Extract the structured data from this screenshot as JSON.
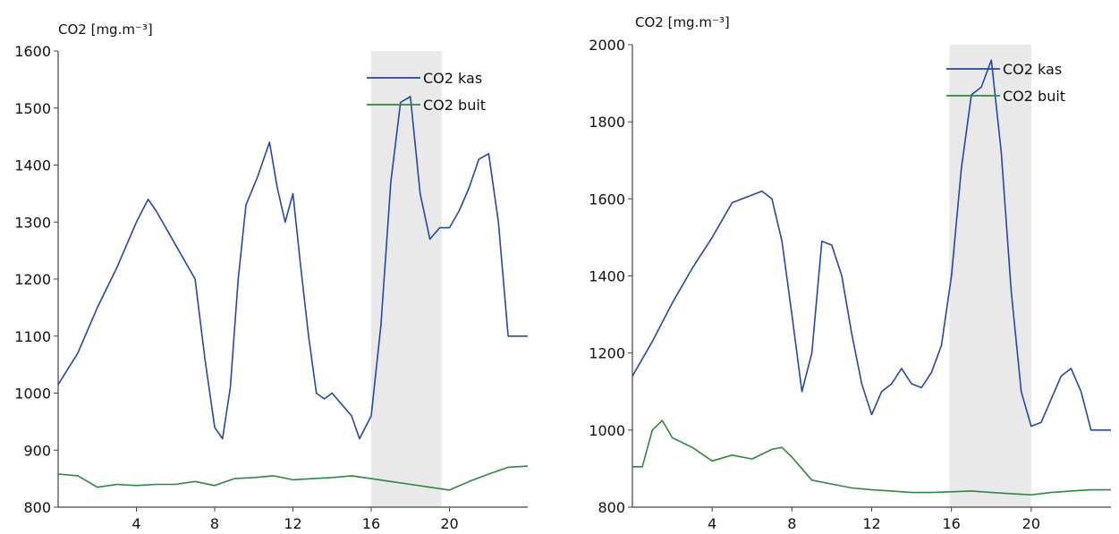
{
  "chart_data": [
    {
      "type": "line",
      "title": "",
      "xlabel": "",
      "ylabel": "CO2 [mg.m⁻³]",
      "xlim": [
        0,
        24
      ],
      "ylim": [
        800,
        1600
      ],
      "xticks": [
        4,
        8,
        12,
        16,
        20
      ],
      "xtick_labels": [
        "4",
        "8",
        "12",
        "16",
        "20"
      ],
      "yticks": [
        800,
        900,
        1000,
        1100,
        1200,
        1300,
        1400,
        1500,
        1600
      ],
      "ytick_labels": [
        "800",
        "900",
        "1000",
        "1100",
        "1200",
        "1300",
        "1400",
        "1500",
        "1600"
      ],
      "shaded_x": [
        16,
        19.6
      ],
      "shade_color": "#e9e9e9",
      "grid": false,
      "legend_position": "top-right",
      "series": [
        {
          "name": "CO2 kas",
          "color": "#2448a8",
          "x": [
            0,
            1,
            2,
            3,
            4,
            4.6,
            5,
            6,
            7,
            7.5,
            8,
            8.4,
            8.8,
            9.2,
            9.6,
            10.2,
            10.8,
            11.2,
            11.6,
            12,
            12.4,
            12.8,
            13.2,
            13.6,
            14,
            14.5,
            15,
            15.4,
            16,
            16.5,
            17,
            17.5,
            18,
            18.5,
            19,
            19.5,
            20,
            20.5,
            21,
            21.5,
            22,
            22.5,
            23,
            24
          ],
          "y": [
            1015,
            1070,
            1150,
            1220,
            1300,
            1340,
            1320,
            1260,
            1200,
            1060,
            940,
            920,
            1010,
            1200,
            1330,
            1380,
            1440,
            1360,
            1300,
            1350,
            1220,
            1100,
            1000,
            990,
            1000,
            980,
            960,
            920,
            960,
            1120,
            1370,
            1510,
            1520,
            1350,
            1270,
            1290,
            1290,
            1320,
            1360,
            1410,
            1420,
            1300,
            1100,
            1100
          ]
        },
        {
          "name": "CO2 buit",
          "color": "#2a8a3a",
          "x": [
            0,
            1,
            2,
            3,
            4,
            5,
            6,
            7,
            8,
            9,
            10,
            11,
            12,
            13,
            14,
            15,
            16,
            17,
            18,
            19,
            20,
            21,
            22,
            23,
            24
          ],
          "y": [
            858,
            855,
            835,
            840,
            838,
            840,
            840,
            845,
            838,
            850,
            852,
            855,
            848,
            850,
            852,
            855,
            850,
            845,
            840,
            835,
            830,
            845,
            858,
            870,
            872
          ]
        }
      ]
    },
    {
      "type": "line",
      "title": "",
      "xlabel": "",
      "ylabel": "CO2 [mg.m⁻³]",
      "xlim": [
        0,
        24
      ],
      "ylim": [
        800,
        2000
      ],
      "xticks": [
        4,
        8,
        12,
        16,
        20
      ],
      "xtick_labels": [
        "4",
        "8",
        "12",
        "16",
        "20"
      ],
      "yticks": [
        800,
        1000,
        1200,
        1400,
        1600,
        1800,
        2000
      ],
      "ytick_labels": [
        "800",
        "1000",
        "1200",
        "1400",
        "1600",
        "1800",
        "2000"
      ],
      "shaded_x": [
        15.9,
        20
      ],
      "shade_color": "#e9e9e9",
      "grid": false,
      "legend_position": "top-right",
      "series": [
        {
          "name": "CO2 kas",
          "color": "#2448a8",
          "x": [
            0,
            1,
            2,
            3,
            4,
            5,
            6,
            6.5,
            7,
            7.5,
            8,
            8.5,
            9,
            9.5,
            10,
            10.5,
            11,
            11.5,
            12,
            12.5,
            13,
            13.5,
            14,
            14.5,
            15,
            15.5,
            16,
            16.5,
            17,
            17.5,
            18,
            18.5,
            19,
            19.5,
            20,
            20.5,
            21,
            21.5,
            22,
            22.5,
            23,
            24
          ],
          "y": [
            1140,
            1230,
            1330,
            1420,
            1500,
            1590,
            1610,
            1620,
            1600,
            1490,
            1300,
            1100,
            1200,
            1490,
            1480,
            1400,
            1250,
            1120,
            1040,
            1100,
            1120,
            1160,
            1120,
            1110,
            1150,
            1220,
            1400,
            1680,
            1870,
            1890,
            1960,
            1720,
            1360,
            1100,
            1010,
            1020,
            1080,
            1140,
            1160,
            1100,
            1000,
            1000
          ]
        },
        {
          "name": "CO2 buit",
          "color": "#2a8a3a",
          "x": [
            0,
            0.5,
            1,
            1.5,
            2,
            3,
            4,
            5,
            6,
            7,
            7.5,
            8,
            9,
            10,
            11,
            12,
            13,
            14,
            15,
            16,
            17,
            18,
            19,
            20,
            21,
            22,
            23,
            24
          ],
          "y": [
            905,
            905,
            1000,
            1025,
            980,
            955,
            920,
            935,
            925,
            950,
            955,
            930,
            870,
            860,
            850,
            845,
            842,
            838,
            838,
            840,
            842,
            838,
            835,
            832,
            838,
            842,
            845,
            845
          ]
        }
      ]
    }
  ]
}
